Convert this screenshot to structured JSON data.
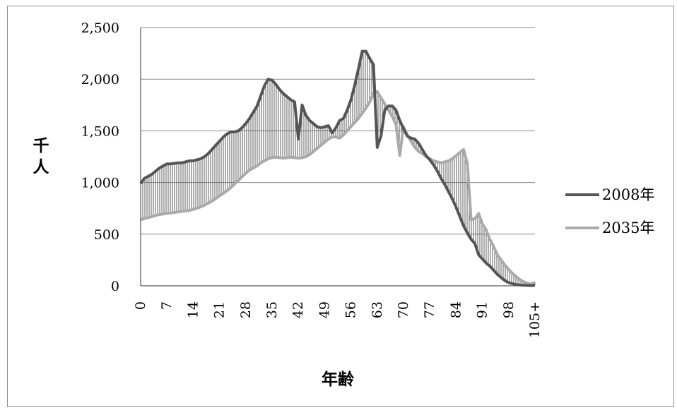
{
  "chart_data": {
    "type": "line",
    "title": "",
    "xlabel": "年齢",
    "ylabel": "千人",
    "ylim": [
      0,
      2500
    ],
    "yticks": [
      0,
      500,
      1000,
      1500,
      2000,
      2500
    ],
    "ytick_labels": [
      "0",
      "500",
      "1,000",
      "1,500",
      "2,000",
      "2,500"
    ],
    "xlim": [
      0,
      105
    ],
    "xticks": [
      0,
      7,
      14,
      21,
      28,
      35,
      42,
      49,
      56,
      63,
      70,
      77,
      84,
      91,
      98,
      105
    ],
    "xtick_labels": [
      "0",
      "7",
      "14",
      "21",
      "28",
      "35",
      "42",
      "49",
      "56",
      "63",
      "70",
      "77",
      "84",
      "91",
      "98",
      "105+"
    ],
    "grid": true,
    "legend": "right",
    "fill_between": "vertical-hatch",
    "series": [
      {
        "name": "2008年",
        "color": "#555555",
        "values": [
          990,
          1040,
          1060,
          1080,
          1110,
          1140,
          1160,
          1180,
          1180,
          1185,
          1190,
          1190,
          1200,
          1210,
          1210,
          1220,
          1230,
          1250,
          1280,
          1320,
          1360,
          1400,
          1440,
          1470,
          1490,
          1490,
          1500,
          1530,
          1570,
          1620,
          1680,
          1740,
          1840,
          1940,
          2000,
          1990,
          1950,
          1900,
          1860,
          1830,
          1800,
          1780,
          1420,
          1750,
          1650,
          1600,
          1570,
          1540,
          1530,
          1540,
          1550,
          1480,
          1530,
          1600,
          1620,
          1700,
          1800,
          1940,
          2100,
          2270,
          2270,
          2200,
          2140,
          1340,
          1450,
          1700,
          1740,
          1740,
          1700,
          1600,
          1520,
          1450,
          1430,
          1420,
          1380,
          1320,
          1260,
          1220,
          1170,
          1110,
          1040,
          980,
          910,
          840,
          760,
          670,
          580,
          510,
          450,
          410,
          300,
          260,
          220,
          190,
          150,
          110,
          80,
          50,
          30,
          20,
          12,
          8,
          5,
          3,
          2,
          5
        ]
      },
      {
        "name": "2035年",
        "color": "#aaaaaa",
        "values": [
          640,
          650,
          660,
          670,
          680,
          690,
          695,
          700,
          705,
          710,
          715,
          720,
          725,
          730,
          740,
          750,
          765,
          780,
          800,
          820,
          845,
          870,
          895,
          920,
          950,
          985,
          1020,
          1055,
          1090,
          1120,
          1140,
          1160,
          1190,
          1210,
          1230,
          1240,
          1245,
          1240,
          1235,
          1240,
          1245,
          1240,
          1235,
          1240,
          1250,
          1270,
          1300,
          1330,
          1360,
          1390,
          1420,
          1440,
          1440,
          1430,
          1460,
          1500,
          1540,
          1580,
          1620,
          1670,
          1720,
          1780,
          1860,
          1880,
          1820,
          1760,
          1700,
          1640,
          1560,
          1260,
          1540,
          1460,
          1400,
          1340,
          1300,
          1280,
          1250,
          1230,
          1210,
          1200,
          1190,
          1200,
          1210,
          1230,
          1260,
          1290,
          1320,
          1180,
          640,
          650,
          700,
          600,
          540,
          450,
          380,
          300,
          250,
          200,
          160,
          120,
          90,
          60,
          40,
          25,
          15,
          35
        ]
      }
    ]
  }
}
